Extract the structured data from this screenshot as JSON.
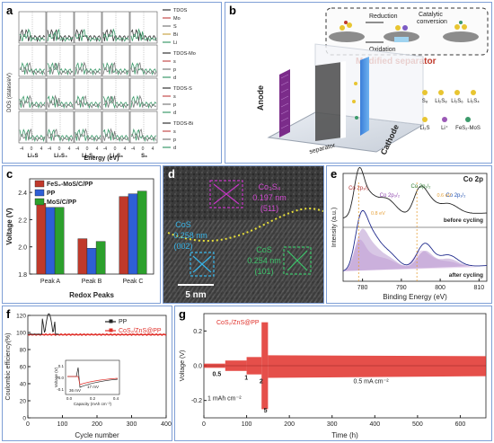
{
  "panel_labels": {
    "a": "a",
    "b": "b",
    "c": "c",
    "d": "d",
    "e": "e",
    "f": "f",
    "g": "g"
  },
  "panel_a": {
    "ylabel": "DOS (states/eV)",
    "xlabel": "Energy (eV)",
    "columns": [
      "Li₂S",
      "Li₂S₄",
      "Li₂S₆",
      "Li₂S₈",
      "S₈"
    ],
    "ticks": [
      "-4",
      "0",
      "4"
    ],
    "legend": [
      {
        "label": "TDOS",
        "color": "#333333"
      },
      {
        "label": "Mo",
        "color": "#c44c4c"
      },
      {
        "label": "S",
        "color": "#7a7a7a"
      },
      {
        "label": "Bi",
        "color": "#c9a64a"
      },
      {
        "label": "Li",
        "color": "#3b9a6a"
      },
      {
        "label": "TDOS-Mo",
        "color": "#333333"
      },
      {
        "label": "s",
        "color": "#c44c4c"
      },
      {
        "label": "p",
        "color": "#7a7a7a"
      },
      {
        "label": "d",
        "color": "#3b9a6a"
      },
      {
        "label": "TDOS-S",
        "color": "#333333"
      },
      {
        "label": "s",
        "color": "#c44c4c"
      },
      {
        "label": "p",
        "color": "#7a7a7a"
      },
      {
        "label": "d",
        "color": "#3b9a6a"
      },
      {
        "label": "TDOS-Bi",
        "color": "#333333"
      },
      {
        "label": "s",
        "color": "#c44c4c"
      },
      {
        "label": "p",
        "color": "#7a7a7a"
      },
      {
        "label": "d",
        "color": "#3b9a6a"
      }
    ]
  },
  "panel_b": {
    "reduction": "Reduction",
    "oxidation": "Oxidation",
    "catalytic": "Catalytic",
    "conversion": "conversion",
    "modified_separator": "Modified separator",
    "anode": "Anode",
    "cathode": "Cathode",
    "separator": "separator",
    "legend": [
      "S₈",
      "Li₂S₈",
      "Li₂S₆",
      "Li₂S₄",
      "Li₂S",
      "Li⁺",
      "FeS₂-MoS"
    ]
  },
  "chart_data": [
    {
      "type": "bar",
      "panel": "c",
      "categories": [
        "Peak A",
        "Peak B",
        "Peak C"
      ],
      "series": [
        {
          "name": "FeS₂-MoS/C/PP",
          "color": "#c0392b",
          "values": [
            2.32,
            2.06,
            2.37
          ]
        },
        {
          "name": "PP",
          "color": "#2e5fd6",
          "values": [
            2.29,
            1.99,
            2.39
          ]
        },
        {
          "name": "MoS/C/PP",
          "color": "#2ca02c",
          "values": [
            2.29,
            2.04,
            2.41
          ]
        }
      ],
      "xlabel": "Redox Peaks",
      "ylabel": "Voltage (V)",
      "ylim": [
        1.8,
        2.5
      ],
      "yticks": [
        "1.8",
        "2.0",
        "2.2",
        "2.4"
      ]
    },
    {
      "type": "line",
      "panel": "e",
      "title": "Co 2p",
      "xlabel": "Binding Energy (eV)",
      "ylabel": "Intensity (a.u.)",
      "xlim": [
        775,
        812
      ],
      "xticks": [
        "780",
        "790",
        "800",
        "810"
      ],
      "peaks": [
        "Co 2p₃/₂",
        "Co 2p₃/₂",
        "Co 2p₁/₂",
        "Co 2p₁/₂"
      ],
      "shifts": [
        "0.8 eV",
        "0.6 eV"
      ],
      "curves": [
        "before cycling",
        "after cycling"
      ]
    },
    {
      "type": "line",
      "panel": "f",
      "xlabel": "Cycle number",
      "ylabel": "Coulombic efficiency(%)",
      "xlim": [
        0,
        400
      ],
      "ylim": [
        0,
        120
      ],
      "xticks": [
        "0",
        "100",
        "200",
        "300",
        "400"
      ],
      "yticks": [
        "0",
        "20",
        "40",
        "60",
        "80",
        "100",
        "120"
      ],
      "series": [
        {
          "name": "PP",
          "color": "#222222"
        },
        {
          "name": "CoS₂/ZnS@PP",
          "color": "#e0302a"
        }
      ],
      "inset": {
        "xlabel": "Capacity (mAh cm⁻²)",
        "ylabel": "Voltage (V)",
        "xticks": [
          "0.0",
          "0.2",
          "0.4"
        ],
        "yticks": [
          "0.1",
          "0.0",
          "-0.1"
        ],
        "annotations": [
          "36 mV",
          "17 mV"
        ]
      }
    },
    {
      "type": "line",
      "panel": "g",
      "xlabel": "Time (h)",
      "ylabel": "Voltage (V)",
      "xlim": [
        0,
        660
      ],
      "ylim": [
        -0.3,
        0.3
      ],
      "xticks": [
        "0",
        "100",
        "200",
        "300",
        "400",
        "500",
        "600"
      ],
      "yticks": [
        "-0.2",
        "0.0",
        "0.2"
      ],
      "series": [
        {
          "name": "CoS₂/ZnS@PP",
          "color": "#e0302a"
        }
      ],
      "annotations": [
        "0.5",
        "1",
        "2",
        "5",
        "1 mAh cm⁻²",
        "0.5 mA cm⁻²"
      ]
    }
  ],
  "panel_d": {
    "cos2_label": "Co₃S₄",
    "cos2_spacing": "0.197 nm",
    "cos2_plane": "(511)",
    "cos_label": "CoS",
    "cos_spacing": "0.258 nm",
    "cos_plane": "(002)",
    "gos_label": "CoS",
    "gos_spacing": "0.254 nm",
    "gos_plane": "(101)",
    "scale": "5 nm"
  }
}
